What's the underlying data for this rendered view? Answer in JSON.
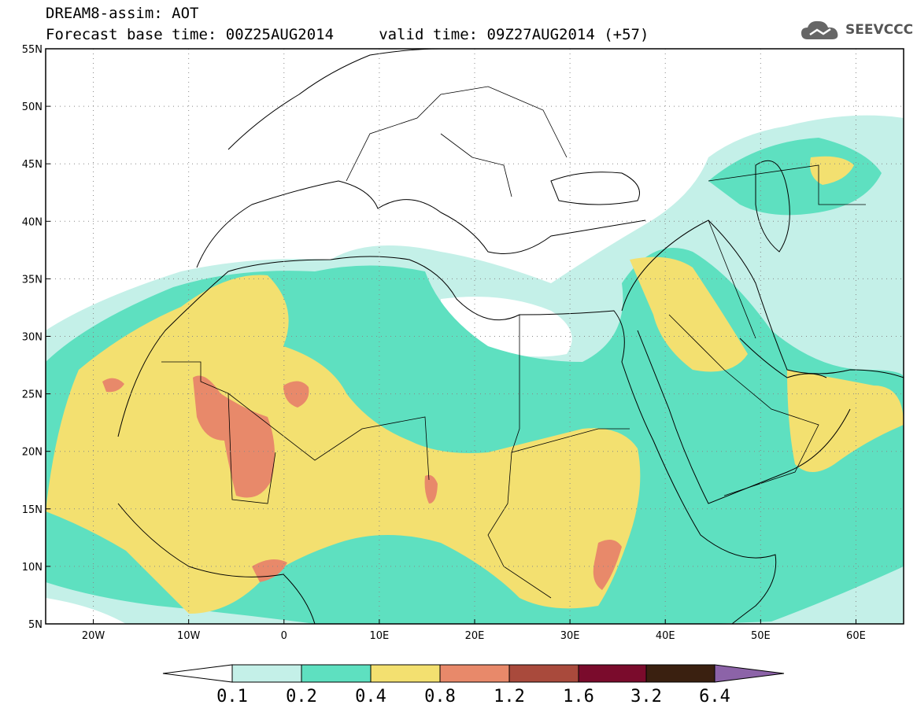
{
  "header": {
    "title_line1": "DREAM8-assim: AOT",
    "title_line2": "Forecast base time: 00Z25AUG2014     valid time: 09Z27AUG2014 (+57)"
  },
  "logo": {
    "text": "SEEVCCC",
    "icon": "cloud-icon"
  },
  "map": {
    "lon_range": [
      -25,
      65
    ],
    "lat_range": [
      5,
      55
    ],
    "lat_ticks": [
      "5N",
      "10N",
      "15N",
      "20N",
      "25N",
      "30N",
      "35N",
      "40N",
      "45N",
      "50N",
      "55N"
    ],
    "lon_ticks": [
      "20W",
      "10W",
      "0",
      "10E",
      "20E",
      "30E",
      "40E",
      "50E",
      "60E"
    ],
    "grid": "dotted"
  },
  "colorbar": {
    "labels": [
      "0.1",
      "0.2",
      "0.4",
      "0.8",
      "1.2",
      "1.6",
      "3.2",
      "6.4"
    ],
    "colors": {
      "under": "#ffffff",
      "c1": "#c4f0e8",
      "c2": "#5ee0c0",
      "c3": "#f3e070",
      "c4": "#e8896a",
      "c5": "#a94a3c",
      "c6": "#7a0b2c",
      "c7": "#3a2010",
      "over": "#8c63a8"
    }
  }
}
